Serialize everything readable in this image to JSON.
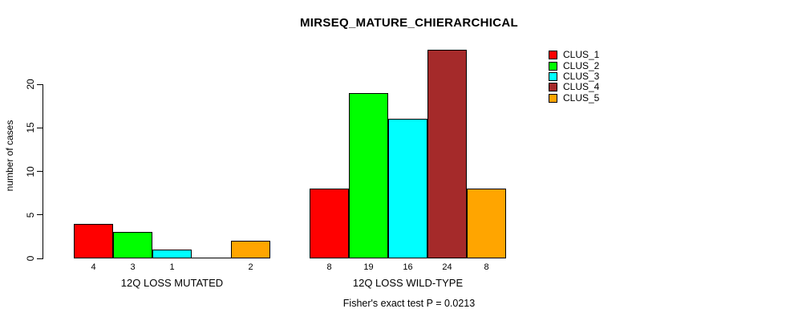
{
  "figure": {
    "background": "#ffffff",
    "axis_color": "#000000"
  },
  "chart_data": {
    "type": "bar",
    "title": "MIRSEQ_MATURE_CHIERARCHICAL",
    "xlabel": "",
    "ylabel": "number of cases",
    "ylim": [
      0,
      20
    ],
    "yticks": [
      0,
      5,
      10,
      15,
      20
    ],
    "grid": false,
    "legend_position": "right",
    "series": [
      {
        "name": "CLUS_1",
        "color": "#FF0000"
      },
      {
        "name": "CLUS_2",
        "color": "#00FF00"
      },
      {
        "name": "CLUS_3",
        "color": "#00FFFF"
      },
      {
        "name": "CLUS_4",
        "color": "#A52A2A"
      },
      {
        "name": "CLUS_5",
        "color": "#FFA500"
      }
    ],
    "groups": [
      {
        "label": "12Q LOSS MUTATED",
        "values": [
          4,
          3,
          1,
          0,
          2
        ],
        "bar_labels": [
          "4",
          "3",
          "1",
          "",
          "2"
        ]
      },
      {
        "label": "12Q LOSS WILD-TYPE",
        "values": [
          8,
          19,
          16,
          24,
          8
        ],
        "bar_labels": [
          "8",
          "19",
          "16",
          "24",
          "8"
        ]
      }
    ],
    "annotation": "Fisher's exact test P = 0.0213"
  }
}
